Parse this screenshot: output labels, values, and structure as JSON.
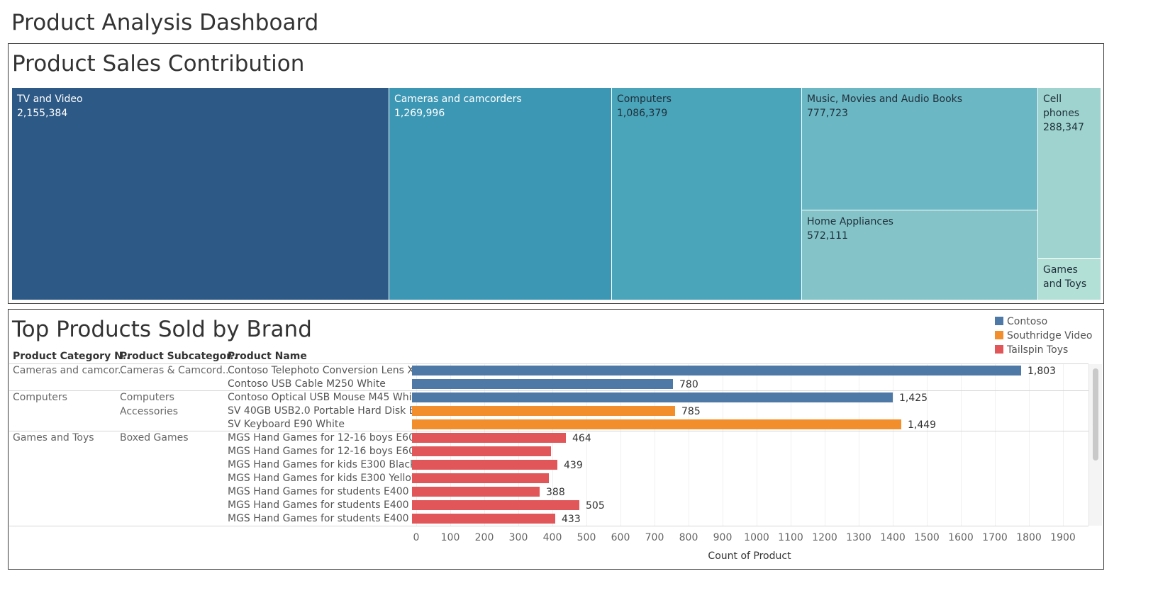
{
  "dashboard": {
    "title": "Product Analysis Dashboard"
  },
  "treemap": {
    "title": "Product Sales Contribution",
    "tiles": [
      {
        "name": "TV and Video",
        "value": "2,155,384",
        "color": "#2d5986"
      },
      {
        "name": "Cameras and camcorders",
        "value": "1,269,996",
        "color": "#3c97b4"
      },
      {
        "name": "Computers",
        "value": "1,086,379",
        "color": "#4aa4ba"
      },
      {
        "name": "Music, Movies and Audio Books",
        "value": "777,723",
        "color": "#6cb7c4"
      },
      {
        "name": "Home Appliances",
        "value": "572,111",
        "color": "#84c4c9"
      },
      {
        "name": "Cell phones",
        "value": "288,347",
        "color": "#9ed3cf"
      },
      {
        "name": "Games and Toys",
        "value": "",
        "color": "#b2dfd6"
      }
    ]
  },
  "bar_panel": {
    "title": "Top Products Sold by Brand",
    "headers": [
      "Product Category N..",
      "Product Subcategor..",
      "Product Name"
    ],
    "groups": [
      {
        "category": "Cameras and camcor..",
        "subcategory": "Cameras & Camcord.."
      },
      {
        "category": "Computers",
        "subcategory": "Computers Accessories",
        "subcategory_lines": [
          "Computers",
          "Accessories"
        ]
      },
      {
        "category": "Games and Toys",
        "subcategory": "Boxed Games"
      }
    ],
    "x_axis_label": "Count of Product",
    "ticks": [
      "0",
      "100",
      "200",
      "300",
      "400",
      "500",
      "600",
      "700",
      "800",
      "900",
      "1000",
      "1100",
      "1200",
      "1300",
      "1400",
      "1500",
      "1600",
      "1700",
      "1800",
      "1900"
    ],
    "legend": [
      {
        "name": "Contoso",
        "color": "#4e79a7"
      },
      {
        "name": "Southridge Video",
        "color": "#f28e2b"
      },
      {
        "name": "Tailspin Toys",
        "color": "#e15759"
      }
    ]
  },
  "chart_data": [
    {
      "type": "treemap",
      "title": "Product Sales Contribution",
      "categories": [
        "TV and Video",
        "Cameras and camcorders",
        "Computers",
        "Music, Movies and Audio Books",
        "Home Appliances",
        "Cell phones",
        "Games and Toys"
      ],
      "values": [
        2155384,
        1269996,
        1086379,
        777723,
        572111,
        288347,
        null
      ]
    },
    {
      "type": "bar",
      "orientation": "horizontal",
      "title": "Top Products Sold by Brand",
      "xlabel": "Count of Product",
      "xlim": [
        0,
        1900
      ],
      "grid": true,
      "legend_position": "top-right",
      "rows": [
        {
          "category": "Cameras and camcor..",
          "subcategory": "Cameras & Camcord..",
          "product": "Contoso Telephoto Conversion Lens X..",
          "brand": "Contoso",
          "value": 1803,
          "label": "1,803"
        },
        {
          "category": "Cameras and camcor..",
          "subcategory": "Cameras & Camcord..",
          "product": "Contoso USB Cable M250 White",
          "brand": "Contoso",
          "value": 780,
          "label": "780"
        },
        {
          "category": "Computers",
          "subcategory": "Computers Accessories",
          "product": "Contoso Optical USB Mouse M45 Whi..",
          "brand": "Contoso",
          "value": 1425,
          "label": "1,425"
        },
        {
          "category": "Computers",
          "subcategory": "Computers Accessories",
          "product": "SV 40GB USB2.0 Portable Hard Disk E..",
          "brand": "Southridge Video",
          "value": 785,
          "label": "785"
        },
        {
          "category": "Computers",
          "subcategory": "Computers Accessories",
          "product": "SV Keyboard E90 White",
          "brand": "Southridge Video",
          "value": 1449,
          "label": "1,449"
        },
        {
          "category": "Games and Toys",
          "subcategory": "Boxed Games",
          "product": "MGS Hand Games for 12-16 boys E60..",
          "brand": "Tailspin Toys",
          "value": 464,
          "label": "464"
        },
        {
          "category": "Games and Toys",
          "subcategory": "Boxed Games",
          "product": "MGS Hand Games for 12-16 boys E60..",
          "brand": "Tailspin Toys",
          "value": 421,
          "label": ""
        },
        {
          "category": "Games and Toys",
          "subcategory": "Boxed Games",
          "product": "MGS Hand Games for kids E300 Black",
          "brand": "Tailspin Toys",
          "value": 439,
          "label": "439"
        },
        {
          "category": "Games and Toys",
          "subcategory": "Boxed Games",
          "product": "MGS Hand Games for kids E300 Yellow",
          "brand": "Tailspin Toys",
          "value": 415,
          "label": ""
        },
        {
          "category": "Games and Toys",
          "subcategory": "Boxed Games",
          "product": "MGS Hand Games for students E400 ..",
          "brand": "Tailspin Toys",
          "value": 388,
          "label": "388"
        },
        {
          "category": "Games and Toys",
          "subcategory": "Boxed Games",
          "product": "MGS Hand Games for students E400 ..",
          "brand": "Tailspin Toys",
          "value": 505,
          "label": "505"
        },
        {
          "category": "Games and Toys",
          "subcategory": "Boxed Games",
          "product": "MGS Hand Games for students E400 ..",
          "brand": "Tailspin Toys",
          "value": 433,
          "label": "433"
        }
      ]
    }
  ]
}
